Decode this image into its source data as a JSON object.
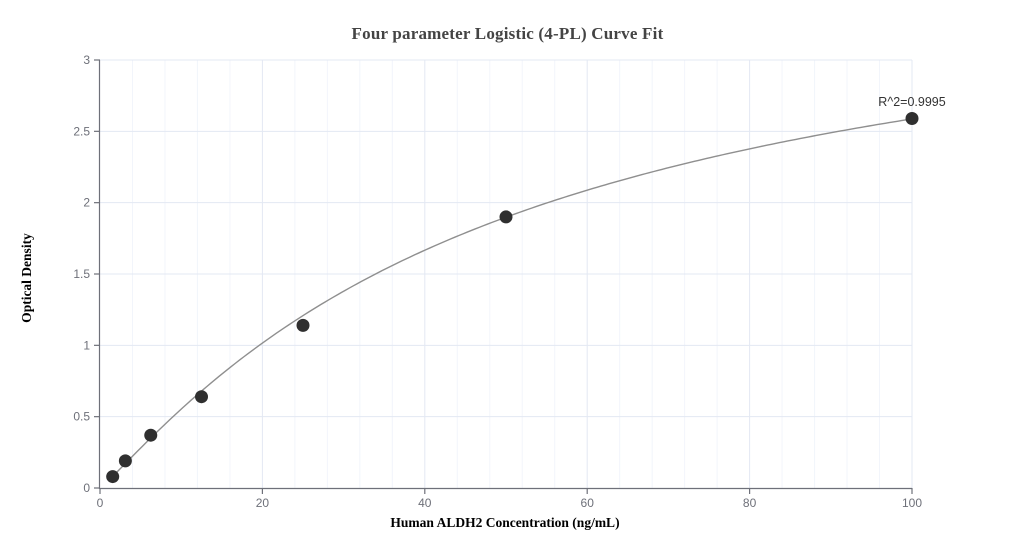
{
  "chart_data": {
    "type": "scatter",
    "title": "Four parameter Logistic (4-PL) Curve Fit",
    "xlabel": "Human ALDH2 Concentration (ng/mL)",
    "ylabel": "Optical Density",
    "annotation": "R^2=0.9995",
    "x": [
      1.5625,
      3.125,
      6.25,
      12.5,
      25,
      50,
      100
    ],
    "y": [
      0.08,
      0.19,
      0.37,
      0.64,
      1.14,
      1.9,
      2.59
    ],
    "xlim": [
      0,
      100
    ],
    "ylim": [
      0,
      3
    ],
    "x_ticks": [
      0,
      20,
      40,
      60,
      80,
      100
    ],
    "y_ticks": [
      0,
      0.5,
      1,
      1.5,
      2,
      2.5,
      3
    ],
    "x_minor_step": 4,
    "grid": true,
    "legend": false,
    "fit": {
      "model": "4PL",
      "a": 0,
      "b": 1.1,
      "c": 49.85,
      "d": 3.79
    },
    "curve_x_start": 1.2
  },
  "colors": {
    "axis": "#6E7079",
    "tick_label": "#6E7079",
    "grid_major": "#e3e8f3",
    "grid_minor": "#f2f5fb",
    "curve": "#8f8f8f",
    "point": "#2f2f2f",
    "title": "#444444",
    "axis_name": "#000000",
    "annotation": "#333333"
  }
}
